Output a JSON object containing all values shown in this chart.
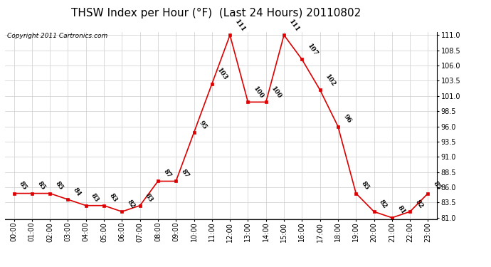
{
  "title": "THSW Index per Hour (°F)  (Last 24 Hours) 20110802",
  "copyright_text": "Copyright 2011 Cartronics.com",
  "hours": [
    "00:00",
    "01:00",
    "02:00",
    "03:00",
    "04:00",
    "05:00",
    "06:00",
    "07:00",
    "08:00",
    "09:00",
    "10:00",
    "11:00",
    "12:00",
    "13:00",
    "14:00",
    "15:00",
    "16:00",
    "17:00",
    "18:00",
    "19:00",
    "20:00",
    "21:00",
    "22:00",
    "23:00"
  ],
  "values": [
    85,
    85,
    85,
    84,
    83,
    83,
    82,
    83,
    87,
    87,
    95,
    103,
    111,
    100,
    100,
    111,
    107,
    102,
    96,
    85,
    82,
    81,
    82,
    85
  ],
  "ylim_min": 81.0,
  "ylim_max": 111.0,
  "yticks": [
    81.0,
    83.5,
    86.0,
    88.5,
    91.0,
    93.5,
    96.0,
    98.5,
    101.0,
    103.5,
    106.0,
    108.5,
    111.0
  ],
  "line_color": "#dd0000",
  "marker_color": "#dd0000",
  "bg_color": "#ffffff",
  "grid_color": "#cccccc",
  "title_fontsize": 11,
  "annotation_fontsize": 6.5,
  "copyright_fontsize": 6.5
}
